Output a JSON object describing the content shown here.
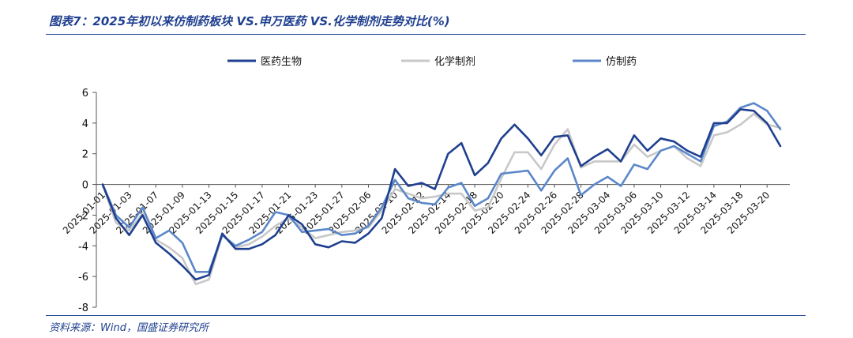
{
  "title": "图表7：2025年初以来仿制药板块 VS.申万医药 VS.化学制剂走势对比(%)",
  "source": "资料来源：Wind，国盛证券研究所",
  "colors": {
    "series1": "#1f3f8f",
    "series2": "#c8c8c8",
    "series3": "#5b87c9"
  },
  "chart_data": {
    "type": "line",
    "ylim": [
      -8,
      6
    ],
    "yticks": [
      -8,
      -6,
      -4,
      -2,
      0,
      2,
      4,
      6
    ],
    "legend_position": "top",
    "grid": false,
    "x_tick_labels": [
      "2025-01-01",
      "2025-01-03",
      "2025-01-07",
      "2025-01-09",
      "2025-01-13",
      "2025-01-15",
      "2025-01-17",
      "2025-01-21",
      "2025-01-23",
      "2025-01-27",
      "2025-02-06",
      "2025-02-10",
      "2025-02-12",
      "2025-02-14",
      "2025-02-18",
      "2025-02-20",
      "2025-02-24",
      "2025-02-26",
      "2025-02-28",
      "2025-03-04",
      "2025-03-06",
      "2025-03-10",
      "2025-03-12",
      "2025-03-14",
      "2025-03-18",
      "2025-03-20"
    ],
    "x": [
      "2025-01-01",
      "2025-01-02",
      "2025-01-03",
      "2025-01-06",
      "2025-01-07",
      "2025-01-08",
      "2025-01-09",
      "2025-01-10",
      "2025-01-13",
      "2025-01-14",
      "2025-01-15",
      "2025-01-16",
      "2025-01-17",
      "2025-01-20",
      "2025-01-21",
      "2025-01-22",
      "2025-01-23",
      "2025-01-24",
      "2025-01-27",
      "2025-02-05",
      "2025-02-06",
      "2025-02-07",
      "2025-02-10",
      "2025-02-11",
      "2025-02-12",
      "2025-02-13",
      "2025-02-14",
      "2025-02-17",
      "2025-02-18",
      "2025-02-19",
      "2025-02-20",
      "2025-02-21",
      "2025-02-24",
      "2025-02-25",
      "2025-02-26",
      "2025-02-27",
      "2025-02-28",
      "2025-03-03",
      "2025-03-04",
      "2025-03-05",
      "2025-03-06",
      "2025-03-07",
      "2025-03-10",
      "2025-03-11",
      "2025-03-12",
      "2025-03-13",
      "2025-03-14",
      "2025-03-17",
      "2025-03-18",
      "2025-03-19",
      "2025-03-20",
      "2025-03-21"
    ],
    "series": [
      {
        "name": "医药生物",
        "values": [
          0,
          -2.2,
          -3.3,
          -2.0,
          -3.8,
          -4.5,
          -5.3,
          -6.2,
          -5.9,
          -3.2,
          -4.2,
          -4.2,
          -3.9,
          -3.3,
          -2.0,
          -2.6,
          -3.9,
          -4.1,
          -3.7,
          -3.8,
          -3.2,
          -2.2,
          1.0,
          -0.1,
          0.1,
          -0.3,
          2.0,
          2.7,
          0.6,
          1.4,
          3.0,
          3.9,
          3.0,
          1.9,
          3.1,
          3.2,
          1.2,
          1.8,
          2.3,
          1.5,
          3.2,
          2.2,
          3.0,
          2.8,
          2.2,
          1.8,
          4.0,
          4.0,
          4.9,
          4.8,
          4.0,
          2.5
        ]
      },
      {
        "name": "化学制剂",
        "values": [
          0,
          -2.5,
          -3.0,
          -1.9,
          -3.6,
          -4.1,
          -4.8,
          -6.5,
          -6.2,
          -3.3,
          -4.1,
          -3.9,
          -3.4,
          -2.7,
          -2.2,
          -2.8,
          -3.5,
          -3.3,
          -3.1,
          -3.0,
          -2.8,
          -1.7,
          -0.3,
          -0.6,
          -0.9,
          -0.8,
          -0.6,
          -0.6,
          -1.7,
          -1.5,
          0.4,
          2.1,
          2.1,
          1.0,
          2.6,
          3.6,
          1.1,
          1.5,
          1.5,
          1.5,
          2.6,
          1.8,
          2.2,
          2.5,
          1.7,
          1.2,
          3.2,
          3.4,
          3.9,
          4.6,
          3.9,
          3.7
        ]
      },
      {
        "name": "仿制药",
        "values": [
          0,
          -2.0,
          -2.8,
          -1.5,
          -3.5,
          -3.0,
          -3.8,
          -5.7,
          -5.7,
          -3.3,
          -4.0,
          -3.6,
          -3.1,
          -1.8,
          -2.0,
          -3.1,
          -3.0,
          -2.9,
          -3.3,
          -3.2,
          -2.7,
          -1.5,
          0.3,
          -0.9,
          -1.2,
          -1.3,
          -0.2,
          0.1,
          -1.4,
          -0.9,
          0.7,
          0.8,
          0.9,
          -0.4,
          0.9,
          1.7,
          -0.7,
          0.0,
          0.5,
          -0.1,
          1.3,
          1.0,
          2.2,
          2.5,
          2.0,
          1.5,
          3.8,
          4.1,
          5.0,
          5.3,
          4.8,
          3.6
        ]
      }
    ]
  }
}
